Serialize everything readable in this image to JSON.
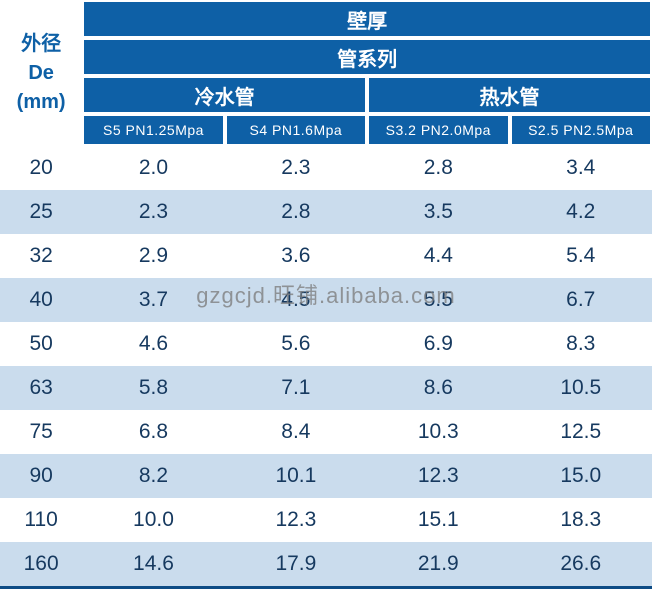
{
  "table": {
    "corner": {
      "l1": "外径",
      "l2": "De",
      "l3": "(mm)"
    },
    "headers": {
      "wall": "壁厚",
      "series": "管系列",
      "cold": "冷水管",
      "hot": "热水管",
      "specs": [
        "S5  PN1.25Mpa",
        "S4  PN1.6Mpa",
        "S3.2  PN2.0Mpa",
        "S2.5  PN2.5Mpa"
      ]
    },
    "rows": [
      {
        "de": "20",
        "v": [
          "2.0",
          "2.3",
          "2.8",
          "3.4"
        ]
      },
      {
        "de": "25",
        "v": [
          "2.3",
          "2.8",
          "3.5",
          "4.2"
        ]
      },
      {
        "de": "32",
        "v": [
          "2.9",
          "3.6",
          "4.4",
          "5.4"
        ]
      },
      {
        "de": "40",
        "v": [
          "3.7",
          "4.5",
          "5.5",
          "6.7"
        ]
      },
      {
        "de": "50",
        "v": [
          "4.6",
          "5.6",
          "6.9",
          "8.3"
        ]
      },
      {
        "de": "63",
        "v": [
          "5.8",
          "7.1",
          "8.6",
          "10.5"
        ]
      },
      {
        "de": "75",
        "v": [
          "6.8",
          "8.4",
          "10.3",
          "12.5"
        ]
      },
      {
        "de": "90",
        "v": [
          "8.2",
          "10.1",
          "12.3",
          "15.0"
        ]
      },
      {
        "de": "110",
        "v": [
          "10.0",
          "12.3",
          "15.1",
          "18.3"
        ]
      },
      {
        "de": "160",
        "v": [
          "14.6",
          "17.9",
          "21.9",
          "26.6"
        ]
      }
    ]
  },
  "watermark": "gzgcjd.旺铺.alibaba.com",
  "colors": {
    "header_bg": "#0e60a6",
    "stripe": "#cadced",
    "data_text": "#16395f",
    "bottom_rule": "#0d4c85"
  },
  "chart_data": {
    "type": "table",
    "title": "壁厚",
    "subtitle": "管系列",
    "row_header": "外径 De (mm)",
    "column_groups": [
      {
        "group": "冷水管",
        "columns": [
          "S5 PN1.25Mpa",
          "S4 PN1.6Mpa"
        ]
      },
      {
        "group": "热水管",
        "columns": [
          "S3.2 PN2.0Mpa",
          "S2.5 PN2.5Mpa"
        ]
      }
    ],
    "rows": [
      {
        "de": 20,
        "values": [
          2.0,
          2.3,
          2.8,
          3.4
        ]
      },
      {
        "de": 25,
        "values": [
          2.3,
          2.8,
          3.5,
          4.2
        ]
      },
      {
        "de": 32,
        "values": [
          2.9,
          3.6,
          4.4,
          5.4
        ]
      },
      {
        "de": 40,
        "values": [
          3.7,
          4.5,
          5.5,
          6.7
        ]
      },
      {
        "de": 50,
        "values": [
          4.6,
          5.6,
          6.9,
          8.3
        ]
      },
      {
        "de": 63,
        "values": [
          5.8,
          7.1,
          8.6,
          10.5
        ]
      },
      {
        "de": 75,
        "values": [
          6.8,
          8.4,
          10.3,
          12.5
        ]
      },
      {
        "de": 90,
        "values": [
          8.2,
          10.1,
          12.3,
          15.0
        ]
      },
      {
        "de": 110,
        "values": [
          10.0,
          12.3,
          15.1,
          18.3
        ]
      },
      {
        "de": 160,
        "values": [
          14.6,
          17.9,
          21.9,
          26.6
        ]
      }
    ]
  }
}
